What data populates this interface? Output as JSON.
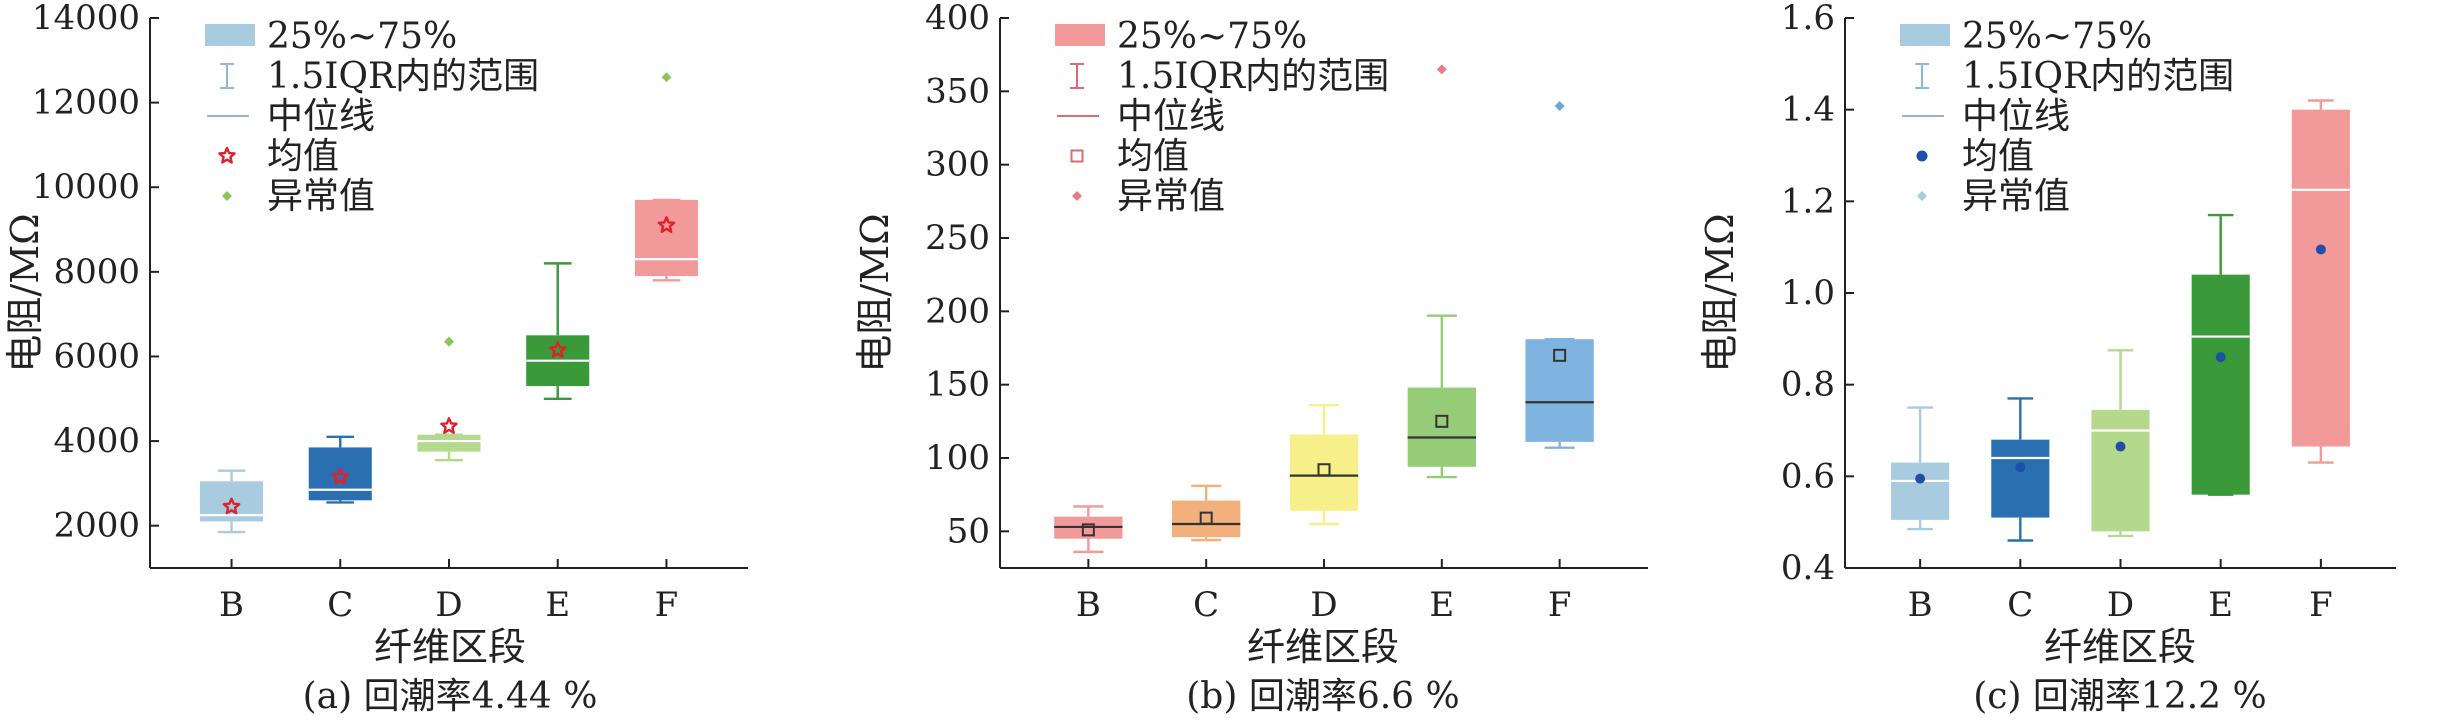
{
  "chart_data": [
    {
      "type": "box",
      "caption": "(a) 回潮率4.44 %",
      "xlabel": "纤维区段",
      "ylabel": "电阻/MΩ",
      "ylim": [
        1000,
        14000
      ],
      "yticks": [
        2000,
        4000,
        6000,
        8000,
        10000,
        12000,
        14000
      ],
      "yticklabels": [
        "2000",
        "4000",
        "6000",
        "8000",
        "10000",
        "12000",
        "14000"
      ],
      "categories": [
        "B",
        "C",
        "D",
        "E",
        "F"
      ],
      "legend": {
        "position": "top-left",
        "entries": [
          "25%~75%",
          "1.5IQR内的范围",
          "中位线",
          "均值",
          "异常值"
        ]
      },
      "series": [
        {
          "category": "B",
          "whisker_low": 1850,
          "q1": 2100,
          "median": 2250,
          "q3": 3050,
          "whisker_high": 3300,
          "mean": 2450,
          "outliers": [],
          "color": "#a8cbe0"
        },
        {
          "category": "C",
          "whisker_low": 2550,
          "q1": 2600,
          "median": 2850,
          "q3": 3850,
          "whisker_high": 4100,
          "mean": 3150,
          "outliers": [],
          "color": "#2a70b0"
        },
        {
          "category": "D",
          "whisker_low": 3550,
          "q1": 3750,
          "median": 4000,
          "q3": 4150,
          "whisker_high": 4150,
          "mean": 4350,
          "outliers": [
            6350
          ],
          "color": "#b5d98c"
        },
        {
          "category": "E",
          "whisker_low": 5000,
          "q1": 5300,
          "median": 5900,
          "q3": 6500,
          "whisker_high": 8200,
          "mean": 6150,
          "outliers": [],
          "color": "#3a9a3a"
        },
        {
          "category": "F",
          "whisker_low": 7800,
          "q1": 7900,
          "median": 8300,
          "q3": 9700,
          "whisker_high": 9700,
          "mean": 9100,
          "outliers": [
            12600
          ],
          "color": "#f29a9a"
        }
      ],
      "style": {
        "median_color": "#ffffff",
        "mean_marker": "star",
        "mean_color": "#e0202a",
        "outlier_marker": "diamond",
        "outlier_color": "#8cc65a"
      }
    },
    {
      "type": "box",
      "caption": "(b) 回潮率6.6 %",
      "xlabel": "纤维区段",
      "ylabel": "电阻/MΩ",
      "ylim": [
        25,
        400
      ],
      "yticks": [
        50,
        100,
        150,
        200,
        250,
        300,
        350,
        400
      ],
      "yticklabels": [
        "50",
        "100",
        "150",
        "200",
        "250",
        "300",
        "350",
        "400"
      ],
      "categories": [
        "B",
        "C",
        "D",
        "E",
        "F"
      ],
      "legend": {
        "position": "top-left",
        "entries": [
          "25%~75%",
          "1.5IQR内的范围",
          "中位线",
          "均值",
          "异常值"
        ]
      },
      "series": [
        {
          "category": "B",
          "whisker_low": 36,
          "q1": 45,
          "median": 53,
          "q3": 60,
          "whisker_high": 67,
          "mean": 51,
          "outliers": [],
          "color": "#f29a9a"
        },
        {
          "category": "C",
          "whisker_low": 44,
          "q1": 46,
          "median": 55,
          "q3": 71,
          "whisker_high": 81,
          "mean": 59,
          "outliers": [],
          "color": "#f4b07c"
        },
        {
          "category": "D",
          "whisker_low": 55,
          "q1": 64,
          "median": 88,
          "q3": 116,
          "whisker_high": 136,
          "mean": 92,
          "outliers": [],
          "color": "#f7ef8a"
        },
        {
          "category": "E",
          "whisker_low": 87,
          "q1": 94,
          "median": 114,
          "q3": 148,
          "whisker_high": 197,
          "mean": 125,
          "outliers": [
            365
          ],
          "color": "#96cc78"
        },
        {
          "category": "F",
          "whisker_low": 107,
          "q1": 111,
          "median": 138,
          "q3": 181,
          "whisker_high": 181,
          "mean": 170,
          "outliers": [
            340
          ],
          "color": "#80b4e0"
        }
      ],
      "style": {
        "median_color": "#333333",
        "mean_marker": "square",
        "mean_color": "#333333",
        "outlier_marker": "diamond",
        "outlier_color": "#e97b86",
        "outlier_color_alt": "#6aa7d8"
      }
    },
    {
      "type": "box",
      "caption": "(c) 回潮率12.2 %",
      "xlabel": "纤维区段",
      "ylabel": "电阻/MΩ",
      "ylim": [
        0.4,
        1.6
      ],
      "yticks": [
        0.4,
        0.6,
        0.8,
        1.0,
        1.2,
        1.4,
        1.6
      ],
      "yticklabels": [
        "0.4",
        "0.6",
        "0.8",
        "1.0",
        "1.2",
        "1.4",
        "1.6"
      ],
      "categories": [
        "B",
        "C",
        "D",
        "E",
        "F"
      ],
      "legend": {
        "position": "top-left",
        "entries": [
          "25%~75%",
          "1.5IQR内的范围",
          "中位线",
          "均值",
          "异常值"
        ]
      },
      "series": [
        {
          "category": "B",
          "whisker_low": 0.485,
          "q1": 0.505,
          "median": 0.59,
          "q3": 0.63,
          "whisker_high": 0.75,
          "mean": 0.595,
          "outliers": [],
          "color": "#a8cbe0"
        },
        {
          "category": "C",
          "whisker_low": 0.46,
          "q1": 0.51,
          "median": 0.64,
          "q3": 0.68,
          "whisker_high": 0.77,
          "mean": 0.62,
          "outliers": [],
          "color": "#2a70b0"
        },
        {
          "category": "D",
          "whisker_low": 0.47,
          "q1": 0.48,
          "median": 0.7,
          "q3": 0.745,
          "whisker_high": 0.875,
          "mean": 0.665,
          "outliers": [],
          "color": "#b5d98c"
        },
        {
          "category": "E",
          "whisker_low": 0.56,
          "q1": 0.56,
          "median": 0.905,
          "q3": 1.04,
          "whisker_high": 1.17,
          "mean": 0.86,
          "outliers": [],
          "color": "#3a9a3a"
        },
        {
          "category": "F",
          "whisker_low": 0.63,
          "q1": 0.665,
          "median": 1.225,
          "q3": 1.4,
          "whisker_high": 1.42,
          "mean": 1.095,
          "outliers": [],
          "color": "#f29a9a"
        }
      ],
      "style": {
        "median_color": "#ffffff",
        "mean_marker": "circle",
        "mean_color": "#1f4fa8",
        "outlier_marker": "diamond",
        "outlier_color": "#a8cbe0"
      }
    }
  ]
}
